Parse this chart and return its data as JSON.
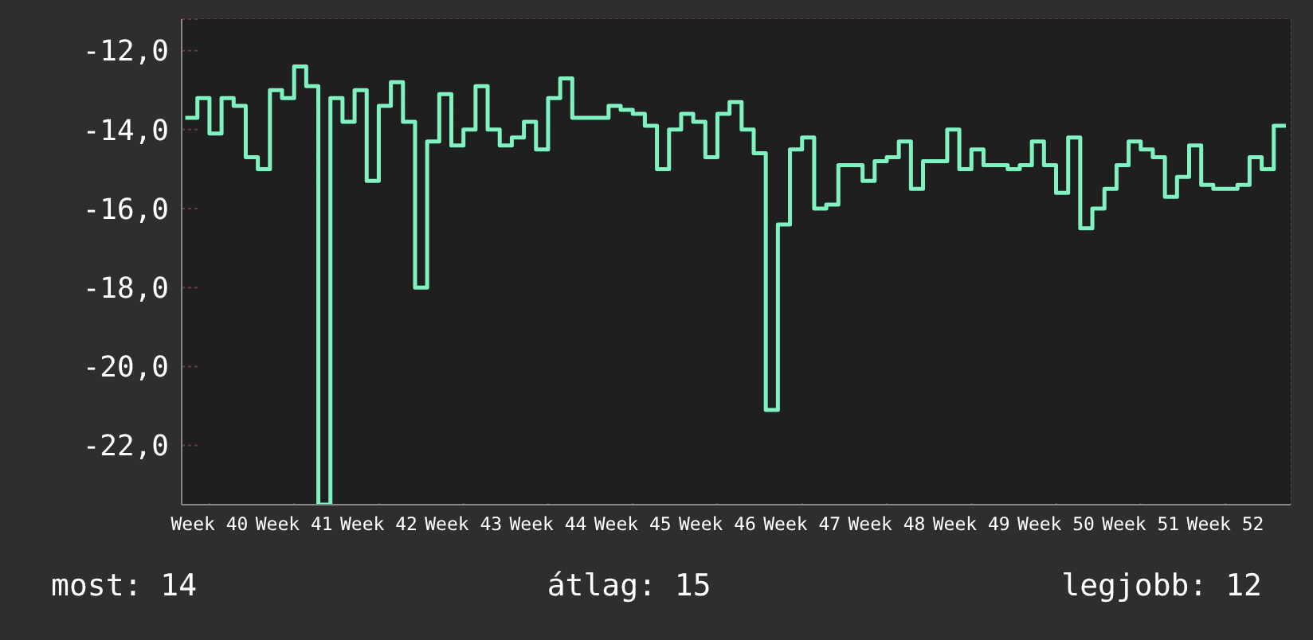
{
  "chart_data": {
    "type": "step",
    "categories": [
      null,
      null,
      "Week 40",
      null,
      null,
      null,
      null,
      null,
      null,
      "Week 41",
      null,
      null,
      null,
      null,
      null,
      null,
      "Week 42",
      null,
      null,
      null,
      null,
      null,
      null,
      "Week 43",
      null,
      null,
      null,
      null,
      null,
      null,
      "Week 44",
      null,
      null,
      null,
      null,
      null,
      null,
      "Week 45",
      null,
      null,
      null,
      null,
      null,
      null,
      "Week 46",
      null,
      null,
      null,
      null,
      null,
      null,
      "Week 47",
      null,
      null,
      null,
      null,
      null,
      null,
      "Week 48",
      null,
      null,
      null,
      null,
      null,
      null,
      "Week 49",
      null,
      null,
      null,
      null,
      null,
      null,
      "Week 50",
      null,
      null,
      null,
      null,
      null,
      null,
      "Week 51",
      null,
      null,
      null,
      null,
      null,
      null,
      "Week 52",
      null,
      null,
      null,
      null,
      null
    ],
    "series": [
      {
        "color": "#80f2c2",
        "values": [
          -13.7,
          -13.2,
          -14.1,
          -13.2,
          -13.4,
          -14.7,
          -15.0,
          -13.0,
          -13.2,
          -12.4,
          -12.9,
          -23.5,
          -13.2,
          -13.8,
          -13.0,
          -15.3,
          -13.4,
          -12.8,
          -13.8,
          -18.0,
          -14.3,
          -13.1,
          -14.4,
          -14.0,
          -12.9,
          -14.0,
          -14.4,
          -14.2,
          -13.8,
          -14.5,
          -13.2,
          -12.7,
          -13.7,
          -13.7,
          -13.7,
          -13.4,
          -13.5,
          -13.6,
          -13.9,
          -15.0,
          -14.0,
          -13.6,
          -13.8,
          -14.7,
          -13.6,
          -13.3,
          -14.0,
          -14.6,
          -21.1,
          -16.4,
          -14.5,
          -14.2,
          -16.0,
          -15.9,
          -14.9,
          -14.9,
          -15.3,
          -14.8,
          -14.7,
          -14.3,
          -15.5,
          -14.8,
          -14.8,
          -14.0,
          -15.0,
          -14.5,
          -14.9,
          -14.9,
          -15.0,
          -14.9,
          -14.3,
          -14.9,
          -15.6,
          -14.2,
          -16.5,
          -16.0,
          -15.5,
          -14.9,
          -14.3,
          -14.5,
          -14.7,
          -15.7,
          -15.2,
          -14.4,
          -15.4,
          -15.5,
          -15.5,
          -15.4,
          -14.7,
          -15.0,
          -13.9,
          -13.9
        ]
      }
    ],
    "ylim": [
      -23.5,
      -11.2
    ],
    "yticks": [
      {
        "value": -22,
        "label": "-22,0"
      },
      {
        "value": -20,
        "label": "-20,0"
      },
      {
        "value": -18,
        "label": "-18,0"
      },
      {
        "value": -16,
        "label": "-16,0"
      },
      {
        "value": -14,
        "label": "-14,0"
      },
      {
        "value": -12,
        "label": "-12,0"
      }
    ],
    "grid": true,
    "marker": "none",
    "line_style": "solid",
    "annotations": [
      "most: 14",
      "átlag: 15",
      "legjobb: 12"
    ]
  }
}
